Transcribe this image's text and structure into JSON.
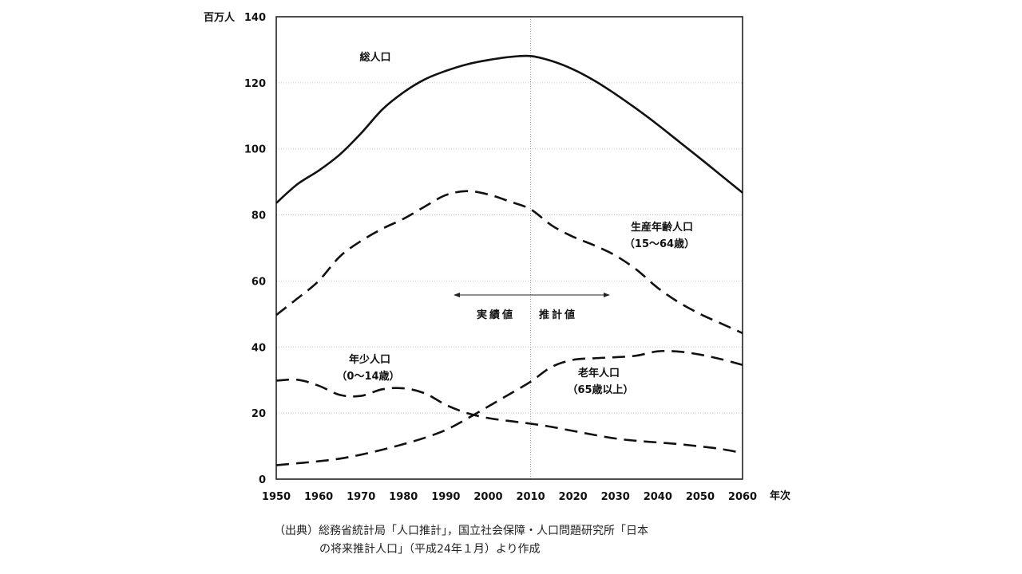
{
  "chart_data": {
    "type": "line",
    "y_unit": "百万人",
    "x_unit": "年次",
    "xlim": [
      1950,
      2060
    ],
    "ylim": [
      0,
      140
    ],
    "xticks": [
      "1950",
      "1960",
      "1970",
      "1980",
      "1990",
      "2000",
      "2010",
      "2020",
      "2030",
      "2040",
      "2050",
      "2060"
    ],
    "yticks": [
      "0",
      "20",
      "40",
      "60",
      "80",
      "100",
      "120",
      "140"
    ],
    "grid": true,
    "divider_year": 2010,
    "divider_labels": {
      "left": "実績値",
      "right": "推計値"
    },
    "series": [
      {
        "name": "総人口",
        "sublabel": "",
        "style": "solid",
        "points": [
          [
            1950,
            83.6
          ],
          [
            1955,
            89.3
          ],
          [
            1960,
            93.4
          ],
          [
            1965,
            98.3
          ],
          [
            1970,
            104.7
          ],
          [
            1975,
            111.9
          ],
          [
            1980,
            117.1
          ],
          [
            1985,
            121.0
          ],
          [
            1990,
            123.6
          ],
          [
            1995,
            125.6
          ],
          [
            2000,
            126.9
          ],
          [
            2005,
            127.8
          ],
          [
            2010,
            128.1
          ],
          [
            2015,
            126.6
          ],
          [
            2020,
            124.1
          ],
          [
            2025,
            120.7
          ],
          [
            2030,
            116.6
          ],
          [
            2035,
            112.1
          ],
          [
            2040,
            107.3
          ],
          [
            2045,
            102.2
          ],
          [
            2050,
            97.1
          ],
          [
            2055,
            91.9
          ],
          [
            2060,
            86.7
          ]
        ]
      },
      {
        "name": "生産年齢人口",
        "sublabel": "（15～64歳）",
        "style": "dashed",
        "points": [
          [
            1950,
            49.7
          ],
          [
            1955,
            54.7
          ],
          [
            1960,
            60.0
          ],
          [
            1965,
            67.4
          ],
          [
            1970,
            72.1
          ],
          [
            1975,
            75.8
          ],
          [
            1980,
            78.8
          ],
          [
            1985,
            82.5
          ],
          [
            1990,
            86.0
          ],
          [
            1995,
            87.2
          ],
          [
            2000,
            86.2
          ],
          [
            2005,
            84.1
          ],
          [
            2010,
            81.7
          ],
          [
            2015,
            76.8
          ],
          [
            2020,
            73.4
          ],
          [
            2025,
            70.8
          ],
          [
            2030,
            67.7
          ],
          [
            2035,
            63.4
          ],
          [
            2040,
            57.9
          ],
          [
            2045,
            53.5
          ],
          [
            2050,
            50.0
          ],
          [
            2055,
            47.1
          ],
          [
            2060,
            44.2
          ]
        ]
      },
      {
        "name": "老年人口",
        "sublabel": "（65歳以上）",
        "style": "dashed",
        "points": [
          [
            1950,
            4.2
          ],
          [
            1955,
            4.8
          ],
          [
            1960,
            5.4
          ],
          [
            1965,
            6.2
          ],
          [
            1970,
            7.4
          ],
          [
            1975,
            8.9
          ],
          [
            1980,
            10.6
          ],
          [
            1985,
            12.5
          ],
          [
            1990,
            14.9
          ],
          [
            1995,
            18.3
          ],
          [
            2000,
            22.0
          ],
          [
            2005,
            25.7
          ],
          [
            2010,
            29.5
          ],
          [
            2015,
            34.0
          ],
          [
            2020,
            36.1
          ],
          [
            2025,
            36.6
          ],
          [
            2030,
            36.9
          ],
          [
            2035,
            37.4
          ],
          [
            2040,
            38.7
          ],
          [
            2045,
            38.6
          ],
          [
            2050,
            37.7
          ],
          [
            2055,
            36.3
          ],
          [
            2060,
            34.6
          ]
        ]
      },
      {
        "name": "年少人口",
        "sublabel": "（0～14歳）",
        "style": "dashed",
        "points": [
          [
            1950,
            29.8
          ],
          [
            1955,
            30.1
          ],
          [
            1960,
            28.3
          ],
          [
            1965,
            25.5
          ],
          [
            1970,
            25.2
          ],
          [
            1975,
            27.2
          ],
          [
            1980,
            27.5
          ],
          [
            1985,
            26.0
          ],
          [
            1990,
            22.5
          ],
          [
            1995,
            20.0
          ],
          [
            2000,
            18.5
          ],
          [
            2005,
            17.6
          ],
          [
            2010,
            16.8
          ],
          [
            2015,
            15.8
          ],
          [
            2020,
            14.6
          ],
          [
            2025,
            13.4
          ],
          [
            2030,
            12.3
          ],
          [
            2035,
            11.6
          ],
          [
            2040,
            11.1
          ],
          [
            2045,
            10.6
          ],
          [
            2050,
            9.9
          ],
          [
            2055,
            9.1
          ],
          [
            2060,
            7.9
          ]
        ]
      }
    ]
  },
  "source": {
    "line1": "（出典）総務省統計局「人口推計」，国立社会保障・人口問題研究所「日本",
    "line2": "の将来推計人口」（平成24年１月）より作成"
  }
}
